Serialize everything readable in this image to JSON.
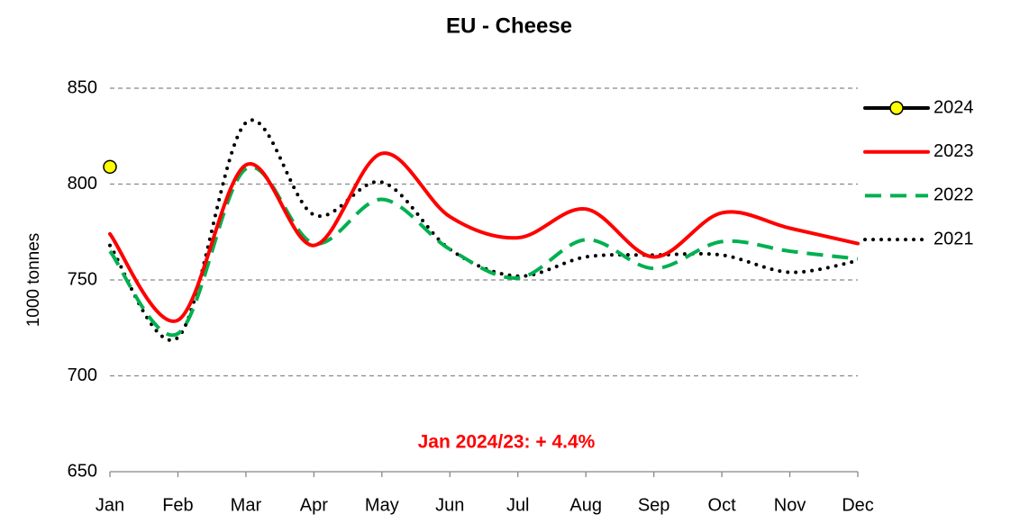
{
  "chart_data": {
    "type": "line",
    "title": "EU - Cheese",
    "ylabel": "1000 tonnes",
    "annotation": "Jan 2024/23: + 4.4%",
    "categories": [
      "Jan",
      "Feb",
      "Mar",
      "Apr",
      "May",
      "Jun",
      "Jul",
      "Aug",
      "Sep",
      "Oct",
      "Nov",
      "Dec"
    ],
    "series": [
      {
        "name": "2024",
        "color": "#000000",
        "marker_color": "#ffff00",
        "style": "solid",
        "marker": true,
        "values": [
          809,
          null,
          null,
          null,
          null,
          null,
          null,
          null,
          null,
          null,
          null,
          null
        ]
      },
      {
        "name": "2023",
        "color": "#ff0000",
        "style": "solid",
        "values": [
          774,
          729,
          810,
          768,
          816,
          783,
          772,
          787,
          762,
          785,
          777,
          769
        ]
      },
      {
        "name": "2022",
        "color": "#00b050",
        "style": "dashed",
        "values": [
          765,
          722,
          808,
          769,
          792,
          766,
          751,
          771,
          756,
          770,
          765,
          761
        ]
      },
      {
        "name": "2021",
        "color": "#000000",
        "style": "dotted",
        "values": [
          768,
          720,
          832,
          784,
          801,
          766,
          752,
          762,
          763,
          763,
          754,
          760
        ]
      }
    ],
    "ylim": [
      650,
      850
    ],
    "yticks": [
      650,
      700,
      750,
      800,
      850
    ],
    "grid": true,
    "legend": "right"
  }
}
